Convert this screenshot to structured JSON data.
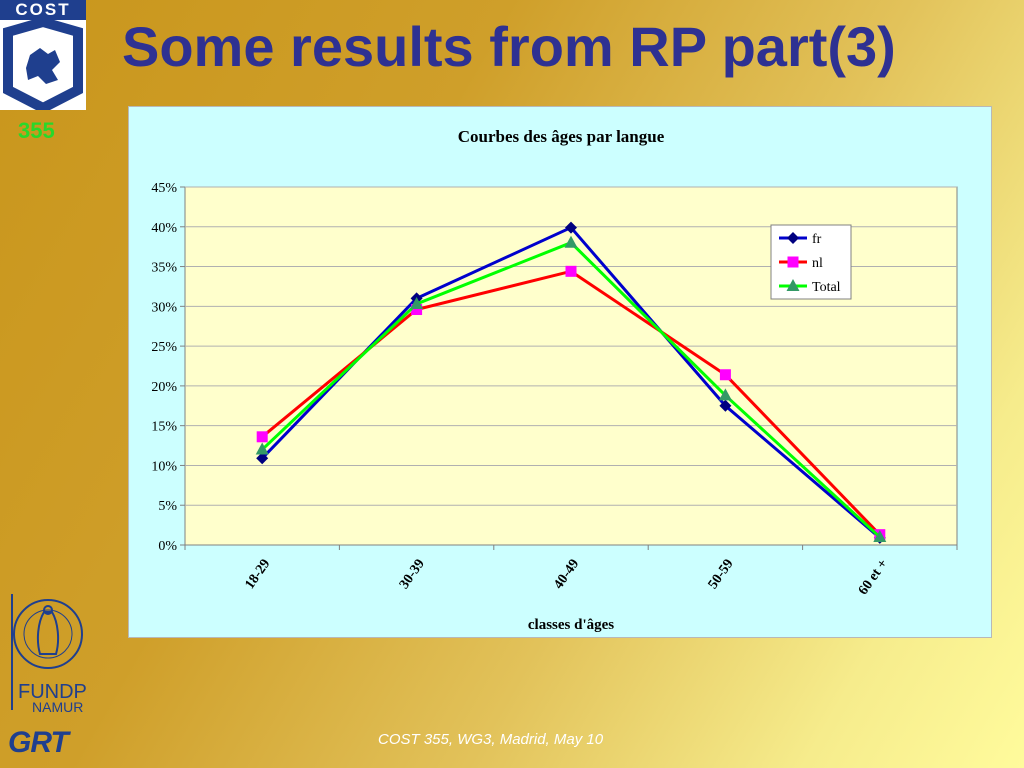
{
  "header": {
    "title": "Some results from RP part(3)",
    "slide_number": "355"
  },
  "logo": {
    "cost_text": "COST"
  },
  "institution": {
    "name": "FUNDP",
    "city": "NAMUR",
    "group": "GRT"
  },
  "footer": {
    "text": "COST 355, WG3, Madrid, May 10"
  },
  "colors": {
    "title": "#2e3192",
    "plot_bg": "#ffffcc",
    "chart_bg": "#ccffff",
    "fr": "#0000cc",
    "nl": "#ff0000",
    "total": "#00ff00"
  },
  "chart_data": {
    "type": "line",
    "title": "Courbes des âges par langue",
    "xlabel": "classes d'âges",
    "ylabel": "",
    "categories": [
      "18-29",
      "30-39",
      "40-49",
      "50-59",
      "60 et +"
    ],
    "ylim": [
      0,
      0.45
    ],
    "yticks": [
      "0%",
      "5%",
      "10%",
      "15%",
      "20%",
      "25%",
      "30%",
      "35%",
      "40%",
      "45%"
    ],
    "grid": true,
    "legend_position": "top-right",
    "series": [
      {
        "name": "fr",
        "values": [
          0.109,
          0.31,
          0.399,
          0.175,
          0.009
        ],
        "line_color": "#0000cc",
        "marker": "diamond",
        "marker_color": "#000080"
      },
      {
        "name": "nl",
        "values": [
          0.136,
          0.296,
          0.344,
          0.214,
          0.013
        ],
        "line_color": "#ff0000",
        "marker": "square",
        "marker_color": "#ff00ff"
      },
      {
        "name": "Total",
        "values": [
          0.12,
          0.303,
          0.38,
          0.188,
          0.01
        ],
        "line_color": "#00ff00",
        "marker": "triangle",
        "marker_color": "#339966"
      }
    ]
  }
}
